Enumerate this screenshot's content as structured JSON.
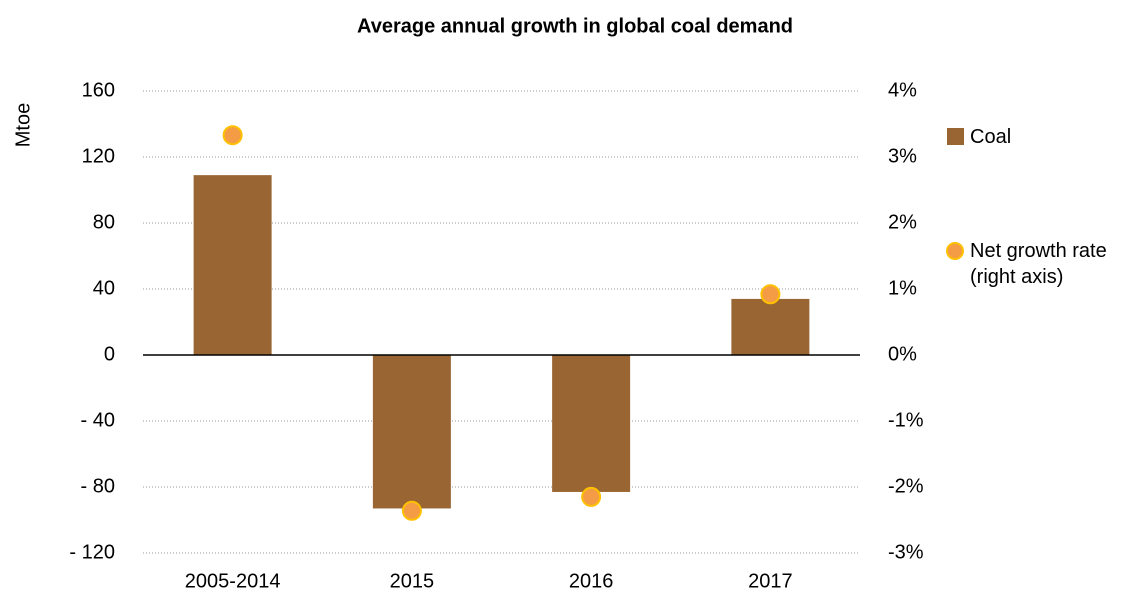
{
  "chart_data": {
    "type": "bar",
    "title": "Average annual growth in global coal demand",
    "y_label": "Mtoe",
    "categories": [
      "2005-2014",
      "2015",
      "2016",
      "2017"
    ],
    "series": [
      {
        "name": "Coal",
        "color": "#996633",
        "values": [
          109,
          -93,
          -83,
          34
        ]
      },
      {
        "name": "Net growth rate (right axis)",
        "color": "#f39c45",
        "type": "scatter",
        "axis": "y2",
        "values": [
          3.33,
          -2.36,
          -2.15,
          0.92
        ]
      }
    ],
    "ylim": [
      -120,
      160
    ],
    "yticks": [
      {
        "value": -120,
        "label": "- 120"
      },
      {
        "value": -80,
        "label": "- 80"
      },
      {
        "value": -40,
        "label": "- 40"
      },
      0,
      40,
      80,
      120,
      160
    ],
    "y2lim": [
      -3,
      4
    ],
    "y2ticks": [
      {
        "value": -3,
        "label": "-3%"
      },
      {
        "value": -2,
        "label": "-2%"
      },
      {
        "value": -1,
        "label": "-1%"
      },
      {
        "value": 0,
        "label": "0%"
      },
      {
        "value": 1,
        "label": "1%"
      },
      {
        "value": 2,
        "label": "2%"
      },
      {
        "value": 3,
        "label": "3%"
      },
      {
        "value": 4,
        "label": "4%"
      }
    ],
    "grid": true,
    "legend": "right"
  }
}
